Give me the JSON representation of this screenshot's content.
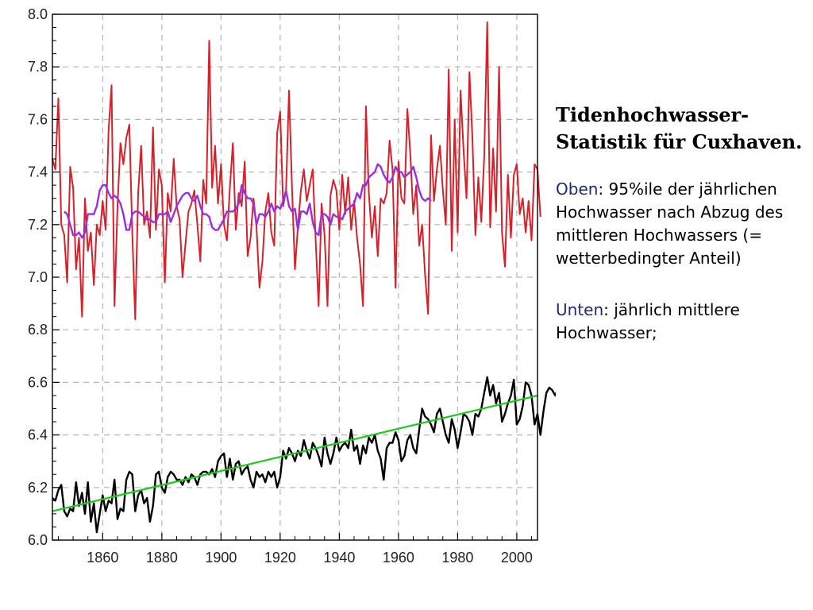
{
  "text_panel": {
    "title": "Tidenhochwasser-Statistik für Cuxhaven.",
    "oben_key": "Oben",
    "oben_text": ": 95%ile der jährlichen Hochwasser nach Abzug des mittleren Hochwassers (= wetterbedingter Anteil)",
    "unten_key": "Unten",
    "unten_text": ": jährlich mittlere Hochwasser;"
  },
  "chart_data": {
    "type": "line",
    "title": "",
    "xlabel": "",
    "ylabel": "",
    "xlim": [
      1843,
      2007
    ],
    "ylim": [
      6.0,
      8.0
    ],
    "xticks": [
      1860,
      1880,
      1900,
      1920,
      1940,
      1960,
      1980,
      2000
    ],
    "yticks": [
      "6.0",
      "6.2",
      "6.4",
      "6.6",
      "6.8",
      "7.0",
      "7.2",
      "7.4",
      "7.6",
      "7.8",
      "8.0"
    ],
    "grid": true,
    "colors": {
      "surge_95": "#d8202a",
      "surge_smooth": "#9b2fe0",
      "mean_high_water": "#000000",
      "trend": "#19cc19",
      "grid": "#b5b5b5"
    },
    "series": [
      {
        "key": "surge_95",
        "x_start": 1843,
        "values": [
          7.45,
          7.41,
          7.68,
          7.2,
          7.16,
          6.98,
          7.42,
          7.34,
          7.03,
          7.15,
          6.85,
          7.3,
          7.1,
          7.17,
          6.97,
          7.2,
          7.16,
          7.29,
          7.18,
          7.56,
          7.73,
          6.89,
          7.27,
          7.51,
          7.43,
          7.53,
          7.58,
          7.17,
          6.84,
          7.32,
          7.5,
          7.2,
          7.25,
          7.15,
          7.57,
          7.18,
          7.41,
          7.35,
          6.98,
          7.32,
          7.25,
          7.45,
          7.27,
          7.22,
          7.0,
          7.13,
          7.25,
          7.28,
          7.33,
          7.2,
          7.06,
          7.37,
          7.28,
          7.9,
          7.34,
          7.5,
          7.28,
          7.43,
          7.2,
          7.14,
          7.34,
          7.51,
          7.18,
          7.32,
          7.27,
          7.44,
          7.08,
          7.15,
          7.3,
          7.19,
          6.96,
          7.06,
          7.25,
          7.32,
          7.17,
          7.12,
          7.55,
          7.63,
          7.27,
          7.33,
          7.71,
          7.34,
          7.03,
          7.19,
          7.33,
          7.41,
          7.29,
          7.35,
          7.41,
          7.14,
          6.89,
          7.28,
          7.16,
          6.89,
          7.31,
          7.37,
          7.33,
          7.18,
          7.39,
          7.24,
          7.38,
          7.18,
          7.29,
          7.15,
          7.05,
          6.89,
          7.65,
          7.32,
          7.15,
          7.27,
          7.08,
          7.3,
          7.28,
          7.32,
          7.52,
          7.41,
          6.96,
          7.44,
          7.3,
          7.28,
          7.64,
          7.47,
          7.24,
          7.35,
          7.12,
          7.2,
          7.01,
          6.86,
          7.54,
          7.29,
          7.41,
          7.5,
          7.33,
          7.2,
          7.79,
          7.1,
          7.6,
          7.17,
          7.71,
          7.48,
          7.3,
          7.78,
          7.53,
          7.16,
          7.38,
          7.21,
          7.46,
          7.97,
          7.19,
          7.49,
          7.25,
          7.8,
          7.17,
          7.04,
          7.39,
          7.15,
          7.39,
          7.43,
          7.24,
          7.3,
          7.17,
          7.29,
          7.14,
          7.43,
          7.41,
          7.23
        ]
      },
      {
        "key": "surge_smooth",
        "x_start": 1847,
        "values": [
          7.25,
          7.24,
          7.2,
          7.16,
          7.16,
          7.17,
          7.15,
          7.17,
          7.24,
          7.24,
          7.24,
          7.27,
          7.33,
          7.35,
          7.35,
          7.32,
          7.3,
          7.31,
          7.3,
          7.28,
          7.24,
          7.18,
          7.18,
          7.24,
          7.25,
          7.25,
          7.24,
          7.23,
          7.22,
          7.22,
          7.21,
          7.21,
          7.24,
          7.24,
          7.24,
          7.25,
          7.21,
          7.24,
          7.27,
          7.29,
          7.31,
          7.32,
          7.32,
          7.3,
          7.29,
          7.31,
          7.27,
          7.24,
          7.24,
          7.23,
          7.19,
          7.18,
          7.18,
          7.2,
          7.22,
          7.25,
          7.25,
          7.25,
          7.26,
          7.28,
          7.35,
          7.32,
          7.3,
          7.3,
          7.28,
          7.2,
          7.24,
          7.24,
          7.23,
          7.25,
          7.28,
          7.25,
          7.27,
          7.26,
          7.29,
          7.33,
          7.27,
          7.25,
          7.26,
          7.18,
          7.25,
          7.25,
          7.24,
          7.28,
          7.21,
          7.17,
          7.16,
          7.24,
          7.24,
          7.23,
          7.2,
          7.24,
          7.23,
          7.23,
          7.22,
          7.25,
          7.26,
          7.27,
          7.28,
          7.32,
          7.3,
          7.35,
          7.35,
          7.38,
          7.39,
          7.4,
          7.43,
          7.42,
          7.39,
          7.37,
          7.36,
          7.38,
          7.42,
          7.4,
          7.4,
          7.38,
          7.39,
          7.4,
          7.42,
          7.38,
          7.33,
          7.3,
          7.29,
          7.3,
          7.29
        ]
      },
      {
        "key": "mean_high_water",
        "x_start": 1843,
        "values": [
          6.16,
          6.15,
          6.19,
          6.21,
          6.11,
          6.09,
          6.12,
          6.11,
          6.22,
          6.13,
          6.18,
          6.1,
          6.22,
          6.07,
          6.14,
          6.03,
          6.1,
          6.17,
          6.11,
          6.15,
          6.14,
          6.23,
          6.08,
          6.12,
          6.11,
          6.23,
          6.26,
          6.25,
          6.11,
          6.17,
          6.19,
          6.14,
          6.16,
          6.07,
          6.13,
          6.25,
          6.26,
          6.2,
          6.18,
          6.24,
          6.26,
          6.25,
          6.23,
          6.23,
          6.21,
          6.24,
          6.22,
          6.25,
          6.24,
          6.21,
          6.25,
          6.26,
          6.26,
          6.25,
          6.27,
          6.24,
          6.3,
          6.32,
          6.33,
          6.24,
          6.31,
          6.23,
          6.29,
          6.3,
          6.25,
          6.27,
          6.28,
          6.23,
          6.2,
          6.26,
          6.24,
          6.25,
          6.22,
          6.26,
          6.24,
          6.26,
          6.2,
          6.24,
          6.34,
          6.31,
          6.35,
          6.33,
          6.3,
          6.34,
          6.32,
          6.38,
          6.34,
          6.31,
          6.37,
          6.35,
          6.32,
          6.28,
          6.39,
          6.33,
          6.29,
          6.33,
          6.39,
          6.34,
          6.36,
          6.37,
          6.35,
          6.42,
          6.34,
          6.36,
          6.29,
          6.36,
          6.33,
          6.39,
          6.37,
          6.4,
          6.34,
          6.31,
          6.23,
          6.35,
          6.37,
          6.37,
          6.41,
          6.38,
          6.3,
          6.32,
          6.38,
          6.4,
          6.35,
          6.33,
          6.42,
          6.5,
          6.47,
          6.46,
          6.44,
          6.41,
          6.48,
          6.5,
          6.45,
          6.4,
          6.37,
          6.46,
          6.42,
          6.35,
          6.41,
          6.48,
          6.47,
          6.45,
          6.4,
          6.48,
          6.47,
          6.5,
          6.56,
          6.62,
          6.55,
          6.59,
          6.52,
          6.56,
          6.45,
          6.48,
          6.52,
          6.55,
          6.61,
          6.44,
          6.46,
          6.51,
          6.6,
          6.59,
          6.55,
          6.44,
          6.48,
          6.4,
          6.49,
          6.56,
          6.58,
          6.57,
          6.55,
          6.58,
          6.55,
          6.57,
          6.53,
          6.52
        ]
      },
      {
        "key": "trend",
        "x": [
          1843,
          2007
        ],
        "values": [
          6.11,
          6.55
        ]
      }
    ]
  }
}
